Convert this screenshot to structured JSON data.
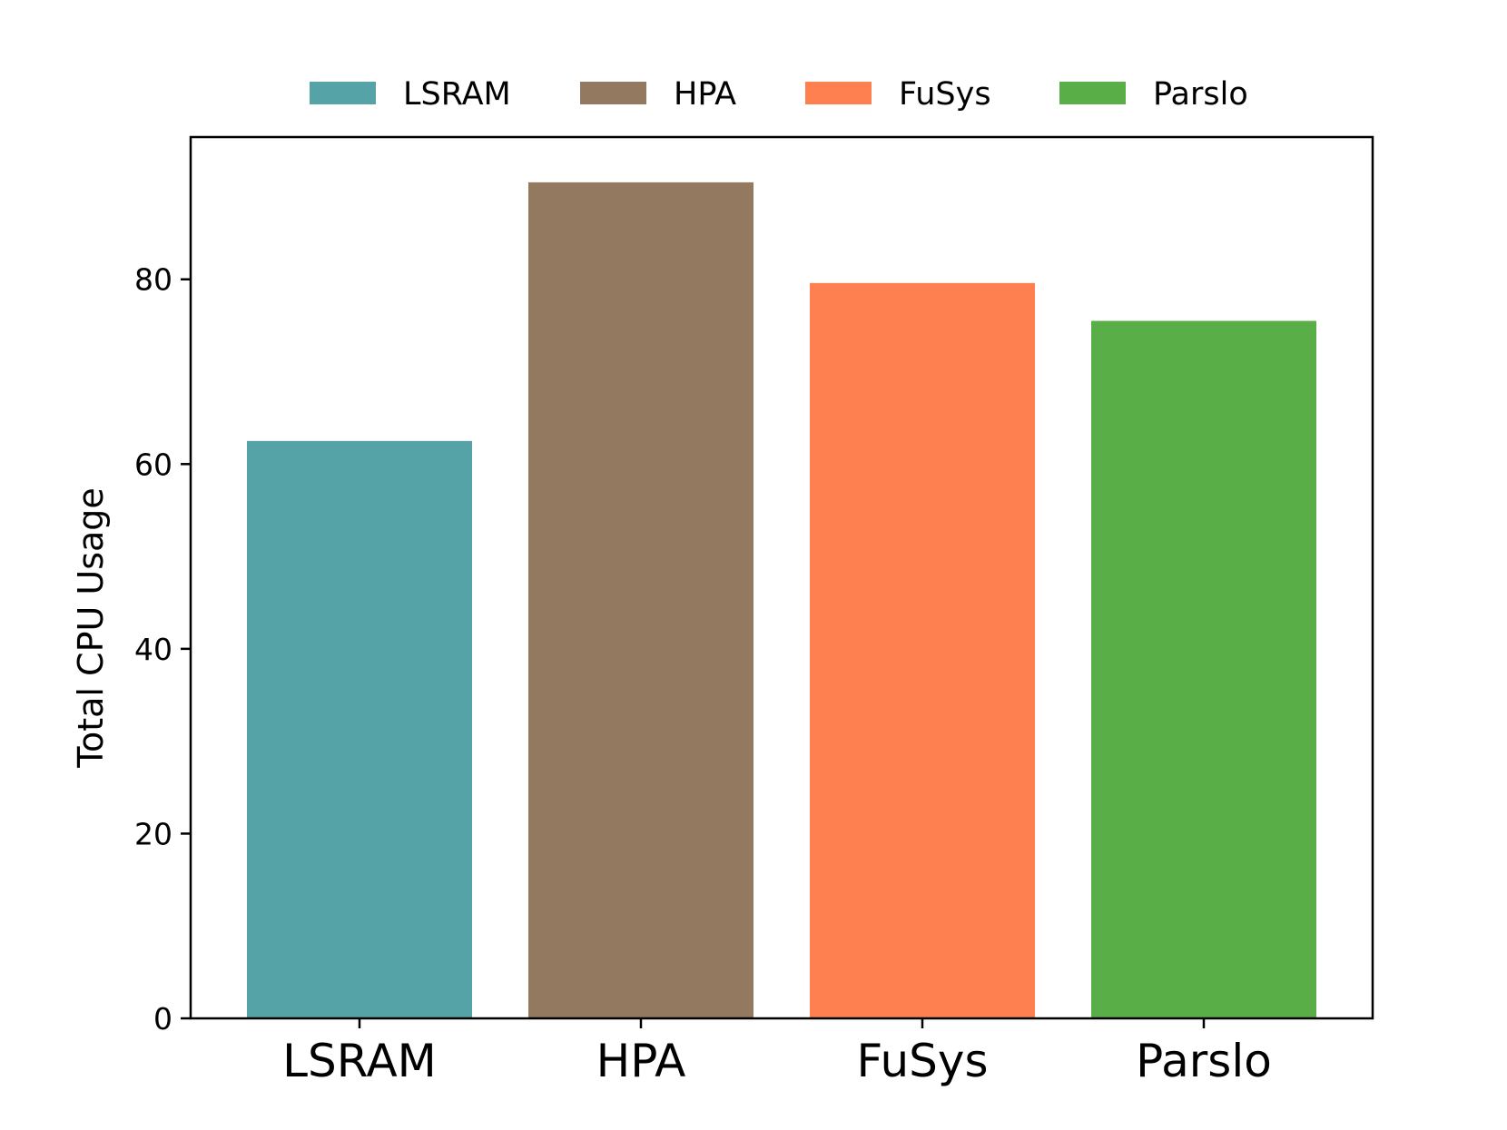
{
  "chart_data": {
    "type": "bar",
    "title": "",
    "xlabel": "",
    "ylabel": "Total CPU Usage",
    "categories": [
      "LSRAM",
      "HPA",
      "FuSys",
      "Parslo"
    ],
    "values": [
      62.5,
      90.5,
      79.6,
      75.5
    ],
    "colors": [
      "#55a3a7",
      "#937960",
      "#fe8050",
      "#5aae48"
    ],
    "ylim": [
      0,
      95.4
    ],
    "yticks": [
      0,
      20,
      40,
      60,
      80
    ],
    "ytick_labels": [
      "0",
      "20",
      "40",
      "60",
      "80"
    ],
    "grid": false,
    "legend": {
      "placement": "top-center",
      "entries": [
        {
          "label": "LSRAM",
          "color": "#55a3a7"
        },
        {
          "label": "HPA",
          "color": "#937960"
        },
        {
          "label": "FuSys",
          "color": "#fe8050"
        },
        {
          "label": "Parslo",
          "color": "#5aae48"
        }
      ]
    }
  }
}
